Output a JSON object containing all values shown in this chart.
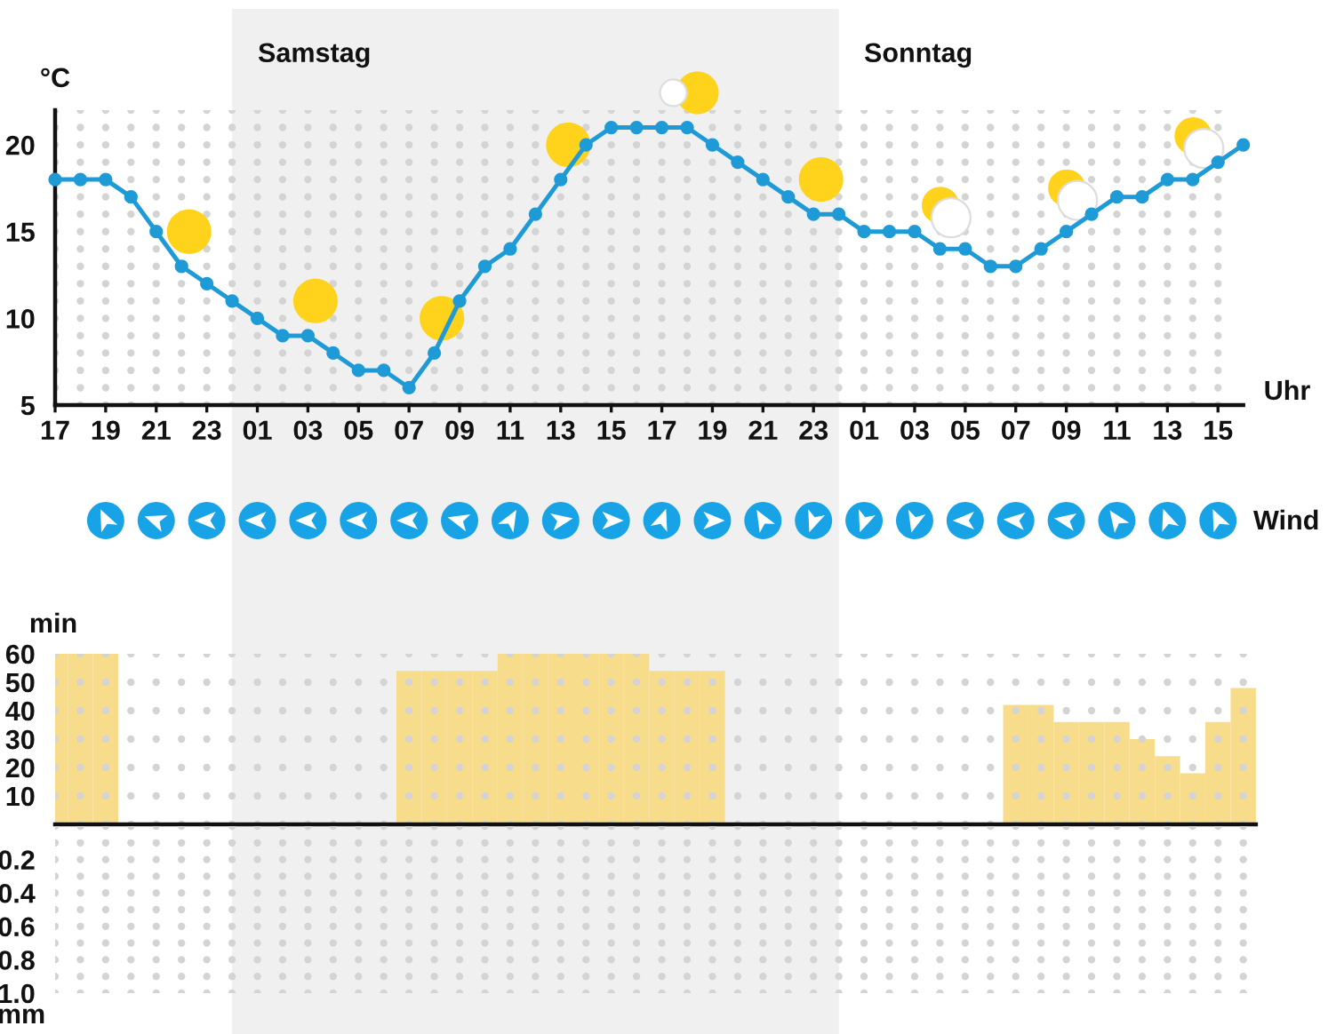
{
  "chart_data": [
    {
      "type": "line",
      "ylabel": "°C",
      "xlabel": "Uhr",
      "categories": [
        "17",
        null,
        "19",
        null,
        "21",
        null,
        "23",
        null,
        "01",
        null,
        "03",
        null,
        "05",
        null,
        "07",
        null,
        "09",
        null,
        "11",
        null,
        "13",
        null,
        "15",
        null,
        "17",
        null,
        "19",
        null,
        "21",
        null,
        "23",
        null,
        "01",
        null,
        "03",
        null,
        "05",
        null,
        "07",
        null,
        "09",
        null,
        "11",
        null,
        "13",
        null,
        "15",
        null
      ],
      "series": [
        {
          "color": "#1e9bd7",
          "values": [
            18,
            18,
            18,
            17,
            15,
            13,
            12,
            11,
            10,
            9,
            9,
            8,
            7,
            7,
            6,
            8,
            11,
            13,
            14,
            16,
            18,
            20,
            21,
            21,
            21,
            21,
            20,
            19,
            18,
            17,
            16,
            16,
            15,
            15,
            15,
            14,
            14,
            13,
            13,
            14,
            15,
            16,
            17,
            17,
            18,
            18,
            19,
            20
          ]
        }
      ],
      "ylim": [
        5,
        22
      ],
      "yticks": [
        5,
        10,
        15,
        20
      ],
      "grid": true,
      "marker": "circle",
      "annotations": [
        "Samstag",
        "Sonntag",
        "Wind"
      ]
    },
    {
      "type": "bar",
      "ylabel": "min",
      "categories": [
        null,
        null,
        null,
        null,
        null,
        null,
        null,
        null,
        null,
        null,
        null,
        null,
        null,
        null,
        null,
        null,
        null,
        null,
        null,
        null,
        null,
        null,
        null,
        null,
        null,
        null,
        null,
        null,
        null,
        null,
        null,
        null,
        null,
        null,
        null,
        null,
        null,
        null,
        null,
        null,
        null,
        null,
        null,
        null,
        null,
        null,
        null,
        null
      ],
      "values": [
        60,
        60,
        60,
        0,
        0,
        0,
        0,
        0,
        0,
        0,
        0,
        0,
        0,
        0,
        54,
        54,
        54,
        54,
        60,
        60,
        60,
        60,
        60,
        60,
        54,
        54,
        54,
        0,
        0,
        0,
        0,
        0,
        0,
        0,
        0,
        0,
        0,
        0,
        42,
        42,
        36,
        36,
        36,
        30,
        24,
        18,
        36,
        48
      ],
      "color": "#f7dd8b",
      "ylim": [
        0,
        60
      ],
      "yticks": [
        10,
        20,
        30,
        40,
        50,
        60
      ],
      "grid": true,
      "tick_labels": "y"
    },
    {
      "type": "bar",
      "ylabel": "mm",
      "categories": [
        null,
        null,
        null,
        null,
        null,
        null,
        null,
        null,
        null,
        null,
        null,
        null,
        null,
        null,
        null,
        null,
        null,
        null,
        null,
        null,
        null,
        null,
        null,
        null,
        null,
        null,
        null,
        null,
        null,
        null,
        null,
        null,
        null,
        null,
        null,
        null,
        null,
        null,
        null,
        null,
        null,
        null,
        null,
        null,
        null,
        null,
        null,
        null
      ],
      "values": [
        0,
        0,
        0,
        0,
        0,
        0,
        0,
        0,
        0,
        0,
        0,
        0,
        0,
        0,
        0,
        0,
        0,
        0,
        0,
        0,
        0,
        0,
        0,
        0,
        0,
        0,
        0,
        0,
        0,
        0,
        0,
        0,
        0,
        0,
        0,
        0,
        0,
        0,
        0,
        0,
        0,
        0,
        0,
        0,
        0,
        0,
        0,
        0
      ],
      "ylim": [
        1,
        0
      ],
      "yticks": [
        0.2,
        0.4,
        0.6,
        0.8,
        {
          "value": 1,
          "label": "1.0"
        }
      ],
      "grid": true,
      "tick_labels": "y"
    }
  ]
}
